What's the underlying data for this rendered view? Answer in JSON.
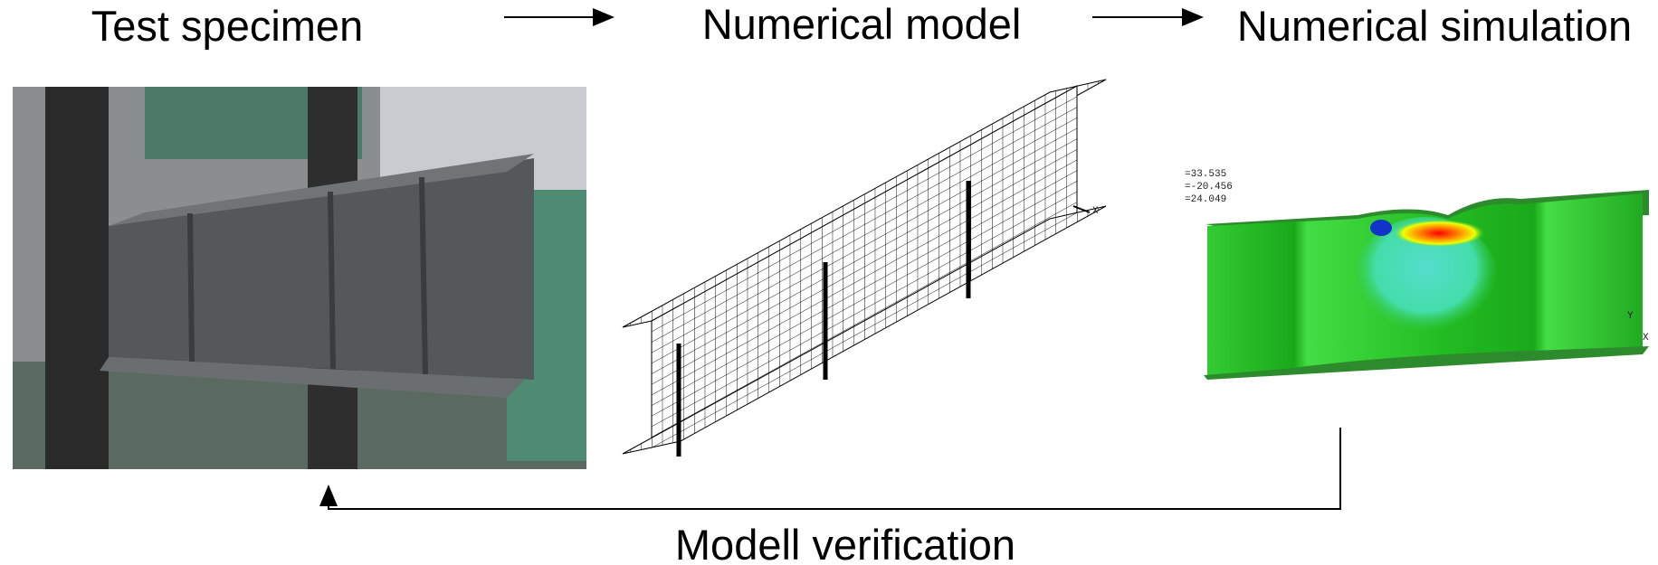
{
  "header": {
    "steps": [
      "Test specimen",
      "Numerical model",
      "Numerical simulation"
    ]
  },
  "model": {
    "axis_label": "X"
  },
  "simulation": {
    "legend": [
      "=33.535",
      "=-20.456",
      "=24.049"
    ],
    "axis_labels": [
      "Y",
      "X"
    ]
  },
  "footer": {
    "label": "Modell verification"
  }
}
